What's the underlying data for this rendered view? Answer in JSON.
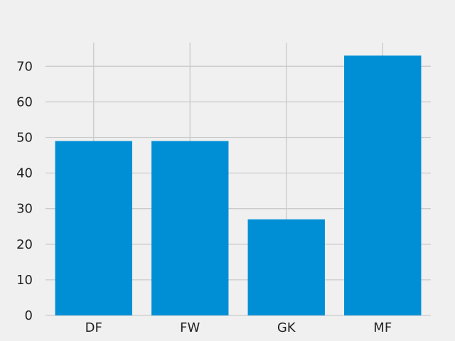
{
  "chart_data": {
    "type": "bar",
    "title": "",
    "xlabel": "",
    "ylabel": "",
    "categories": [
      "DF",
      "FW",
      "GK",
      "MF"
    ],
    "values": [
      49,
      49,
      27,
      73
    ],
    "ylim": [
      0,
      76.65
    ],
    "yticks": [
      0,
      10,
      20,
      30,
      40,
      50,
      60,
      70
    ],
    "grid": true,
    "colors": {
      "bar": "#008fd5",
      "grid": "#cbcbcb",
      "background": "#f0f0f0",
      "text": "#222222"
    }
  }
}
